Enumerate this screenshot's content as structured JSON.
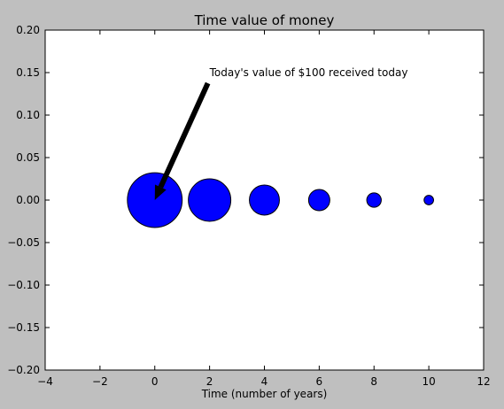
{
  "colors": {
    "figure_background": "#bfbfbf",
    "plot_background": "#ffffff",
    "bubble_fill": "#0000ff",
    "bubble_edge": "#000000",
    "arrow": "#000000"
  },
  "chart_data": {
    "type": "scatter",
    "title": "Time value of money",
    "xlabel": "Time (number of years)",
    "ylabel": "",
    "xlim": [
      -4,
      12
    ],
    "ylim": [
      -0.2,
      0.2
    ],
    "grid": false,
    "x_ticks": [
      -4,
      -2,
      0,
      2,
      4,
      6,
      8,
      10,
      12
    ],
    "x_tick_labels": [
      "−4",
      "−2",
      "0",
      "2",
      "4",
      "6",
      "8",
      "10",
      "12"
    ],
    "y_ticks": [
      -0.2,
      -0.15,
      -0.1,
      -0.05,
      0.0,
      0.05,
      0.1,
      0.15,
      0.2
    ],
    "y_tick_labels": [
      "−0.20",
      "−0.15",
      "−0.10",
      "−0.05",
      "0.00",
      "0.05",
      "0.10",
      "0.15",
      "0.20"
    ],
    "series": [
      {
        "x": [
          0,
          2,
          4,
          6,
          8,
          10
        ],
        "y": [
          0,
          0,
          0,
          0,
          0,
          0
        ],
        "relative_size": [
          1.0,
          0.6,
          0.3,
          0.15,
          0.07,
          0.03
        ]
      }
    ],
    "annotations": [
      {
        "text": "Today's value of $100 received today",
        "xy": [
          0,
          0
        ],
        "xytext": [
          2,
          0.15
        ]
      }
    ]
  }
}
